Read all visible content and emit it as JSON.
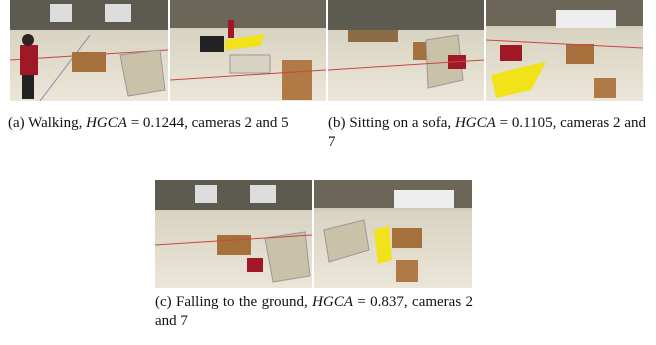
{
  "figures": [
    {
      "label": "(a)",
      "text": "Walking,",
      "metric": "HGCA",
      "rest": "= 0.1244, cameras 2 and 5"
    },
    {
      "label": "(b)",
      "text": "Sitting on a sofa,",
      "metric": "HGCA",
      "rest": "= 0.1105, cameras 2 and 7"
    },
    {
      "label": "(c)",
      "text": "Falling to the ground,",
      "metric": "HGCA",
      "rest": "= 0.837, cameras 2 and 7"
    }
  ]
}
